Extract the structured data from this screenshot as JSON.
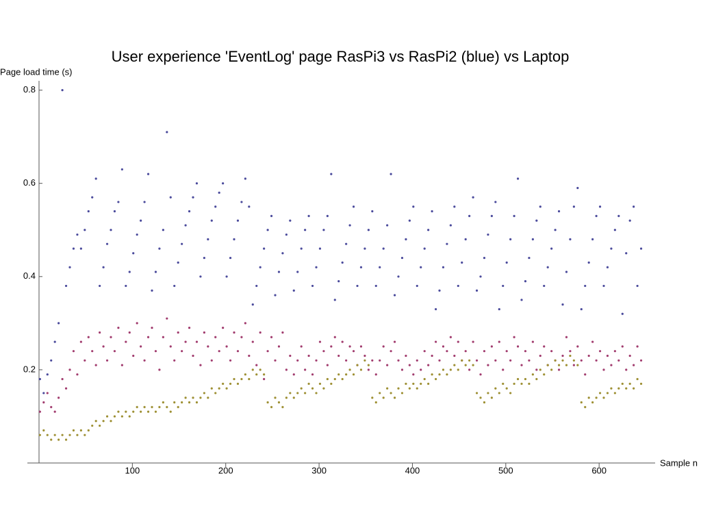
{
  "chart_data": {
    "type": "scatter",
    "title": "User experience 'EventLog' page RasPi3 vs RasPi2 (blue) vs Laptop",
    "y_label": "Page load time (s)",
    "x_label": "Sample n",
    "xlim": [
      0,
      660
    ],
    "ylim": [
      0,
      0.82
    ],
    "xticks": [
      100,
      200,
      300,
      400,
      500,
      600
    ],
    "yticks": [
      0.2,
      0.4,
      0.6,
      0.8
    ],
    "x": [
      1,
      5,
      9,
      13,
      17,
      21,
      25,
      29,
      33,
      37,
      41,
      45,
      49,
      53,
      57,
      61,
      65,
      69,
      73,
      77,
      81,
      85,
      89,
      93,
      97,
      101,
      105,
      109,
      113,
      117,
      121,
      125,
      129,
      133,
      137,
      141,
      145,
      149,
      153,
      157,
      161,
      165,
      169,
      173,
      177,
      181,
      185,
      189,
      193,
      197,
      201,
      205,
      209,
      213,
      217,
      221,
      225,
      229,
      233,
      237,
      241,
      245,
      249,
      253,
      257,
      261,
      265,
      269,
      273,
      277,
      281,
      285,
      289,
      293,
      297,
      301,
      305,
      309,
      313,
      317,
      321,
      325,
      329,
      333,
      337,
      341,
      345,
      349,
      353,
      357,
      361,
      365,
      369,
      373,
      377,
      381,
      385,
      389,
      393,
      397,
      401,
      405,
      409,
      413,
      417,
      421,
      425,
      429,
      433,
      437,
      441,
      445,
      449,
      453,
      457,
      461,
      465,
      469,
      473,
      477,
      481,
      485,
      489,
      493,
      497,
      501,
      505,
      509,
      513,
      517,
      521,
      525,
      529,
      533,
      537,
      541,
      545,
      549,
      553,
      557,
      561,
      565,
      569,
      573,
      577,
      581,
      585,
      589,
      593,
      597,
      601,
      605,
      609,
      613,
      617,
      621,
      625,
      629,
      633,
      637,
      641,
      645
    ],
    "series": [
      {
        "color": "#4b4b9c",
        "values": [
          0.18,
          0.15,
          0.19,
          0.22,
          0.26,
          0.3,
          0.8,
          0.38,
          0.42,
          0.46,
          0.49,
          0.46,
          0.5,
          0.54,
          0.57,
          0.61,
          0.38,
          0.42,
          0.47,
          0.5,
          0.54,
          0.56,
          0.63,
          0.38,
          0.41,
          0.45,
          0.49,
          0.52,
          0.56,
          0.62,
          0.37,
          0.41,
          0.46,
          0.5,
          0.71,
          0.57,
          0.38,
          0.43,
          0.47,
          0.51,
          0.54,
          0.57,
          0.6,
          0.4,
          0.44,
          0.48,
          0.52,
          0.55,
          0.58,
          0.6,
          0.4,
          0.44,
          0.48,
          0.52,
          0.56,
          0.61,
          0.55,
          0.34,
          0.38,
          0.42,
          0.46,
          0.5,
          0.53,
          0.36,
          0.41,
          0.45,
          0.49,
          0.52,
          0.37,
          0.41,
          0.46,
          0.5,
          0.53,
          0.38,
          0.42,
          0.46,
          0.5,
          0.53,
          0.62,
          0.35,
          0.39,
          0.43,
          0.47,
          0.51,
          0.55,
          0.38,
          0.42,
          0.46,
          0.5,
          0.54,
          0.38,
          0.42,
          0.46,
          0.51,
          0.62,
          0.36,
          0.4,
          0.44,
          0.48,
          0.52,
          0.55,
          0.38,
          0.42,
          0.46,
          0.5,
          0.54,
          0.33,
          0.37,
          0.42,
          0.47,
          0.51,
          0.55,
          0.38,
          0.43,
          0.48,
          0.53,
          0.57,
          0.37,
          0.4,
          0.44,
          0.49,
          0.53,
          0.56,
          0.33,
          0.38,
          0.43,
          0.48,
          0.53,
          0.61,
          0.35,
          0.39,
          0.44,
          0.48,
          0.52,
          0.55,
          0.38,
          0.42,
          0.46,
          0.5,
          0.54,
          0.34,
          0.41,
          0.48,
          0.55,
          0.59,
          0.33,
          0.38,
          0.43,
          0.48,
          0.53,
          0.55,
          0.38,
          0.42,
          0.46,
          0.5,
          0.53,
          0.32,
          0.45,
          0.52,
          0.55,
          0.38,
          0.46
        ]
      },
      {
        "color": "#a23d6f",
        "values": [
          0.11,
          0.13,
          0.15,
          0.12,
          0.11,
          0.14,
          0.18,
          0.16,
          0.2,
          0.24,
          0.19,
          0.26,
          0.22,
          0.27,
          0.24,
          0.21,
          0.28,
          0.25,
          0.22,
          0.27,
          0.24,
          0.29,
          0.21,
          0.26,
          0.28,
          0.23,
          0.3,
          0.25,
          0.22,
          0.27,
          0.29,
          0.24,
          0.2,
          0.27,
          0.31,
          0.25,
          0.22,
          0.28,
          0.24,
          0.26,
          0.29,
          0.23,
          0.26,
          0.21,
          0.28,
          0.25,
          0.22,
          0.27,
          0.24,
          0.29,
          0.25,
          0.22,
          0.28,
          0.24,
          0.27,
          0.3,
          0.23,
          0.26,
          0.21,
          0.28,
          0.18,
          0.24,
          0.27,
          0.22,
          0.25,
          0.28,
          0.2,
          0.23,
          0.19,
          0.22,
          0.25,
          0.2,
          0.23,
          0.19,
          0.22,
          0.26,
          0.24,
          0.21,
          0.25,
          0.27,
          0.23,
          0.26,
          0.22,
          0.25,
          0.24,
          0.21,
          0.25,
          0.23,
          0.2,
          0.22,
          0.19,
          0.22,
          0.25,
          0.21,
          0.24,
          0.26,
          0.22,
          0.2,
          0.23,
          0.21,
          0.19,
          0.22,
          0.2,
          0.24,
          0.21,
          0.23,
          0.26,
          0.22,
          0.25,
          0.24,
          0.27,
          0.23,
          0.26,
          0.22,
          0.24,
          0.2,
          0.26,
          0.22,
          0.19,
          0.24,
          0.21,
          0.25,
          0.22,
          0.26,
          0.2,
          0.24,
          0.22,
          0.27,
          0.25,
          0.21,
          0.24,
          0.22,
          0.26,
          0.2,
          0.23,
          0.25,
          0.21,
          0.24,
          0.22,
          0.2,
          0.23,
          0.27,
          0.24,
          0.21,
          0.25,
          0.22,
          0.19,
          0.23,
          0.26,
          0.22,
          0.24,
          0.2,
          0.23,
          0.21,
          0.24,
          0.22,
          0.25,
          0.2,
          0.23,
          0.21,
          0.25,
          0.22
        ]
      },
      {
        "color": "#9e9034",
        "values": [
          0.06,
          0.07,
          0.06,
          0.05,
          0.06,
          0.05,
          0.06,
          0.05,
          0.06,
          0.07,
          0.06,
          0.07,
          0.06,
          0.07,
          0.08,
          0.09,
          0.08,
          0.09,
          0.1,
          0.09,
          0.1,
          0.11,
          0.1,
          0.11,
          0.1,
          0.11,
          0.12,
          0.11,
          0.12,
          0.11,
          0.12,
          0.11,
          0.12,
          0.13,
          0.12,
          0.11,
          0.13,
          0.12,
          0.13,
          0.14,
          0.13,
          0.14,
          0.13,
          0.14,
          0.15,
          0.14,
          0.16,
          0.15,
          0.16,
          0.17,
          0.16,
          0.17,
          0.18,
          0.17,
          0.18,
          0.19,
          0.18,
          0.2,
          0.19,
          0.2,
          0.19,
          0.13,
          0.12,
          0.14,
          0.13,
          0.12,
          0.14,
          0.15,
          0.14,
          0.15,
          0.16,
          0.15,
          0.17,
          0.16,
          0.15,
          0.17,
          0.16,
          0.18,
          0.17,
          0.18,
          0.19,
          0.18,
          0.19,
          0.2,
          0.19,
          0.21,
          0.2,
          0.22,
          0.21,
          0.14,
          0.13,
          0.15,
          0.14,
          0.16,
          0.15,
          0.14,
          0.16,
          0.15,
          0.17,
          0.16,
          0.17,
          0.16,
          0.17,
          0.18,
          0.17,
          0.19,
          0.18,
          0.19,
          0.2,
          0.19,
          0.2,
          0.21,
          0.2,
          0.22,
          0.21,
          0.22,
          0.21,
          0.15,
          0.14,
          0.13,
          0.15,
          0.14,
          0.16,
          0.15,
          0.17,
          0.16,
          0.15,
          0.17,
          0.18,
          0.17,
          0.18,
          0.17,
          0.19,
          0.18,
          0.2,
          0.19,
          0.21,
          0.2,
          0.22,
          0.21,
          0.22,
          0.21,
          0.23,
          0.22,
          0.21,
          0.13,
          0.12,
          0.14,
          0.13,
          0.14,
          0.15,
          0.14,
          0.15,
          0.16,
          0.15,
          0.16,
          0.17,
          0.16,
          0.17,
          0.16,
          0.18,
          0.17
        ]
      }
    ]
  }
}
